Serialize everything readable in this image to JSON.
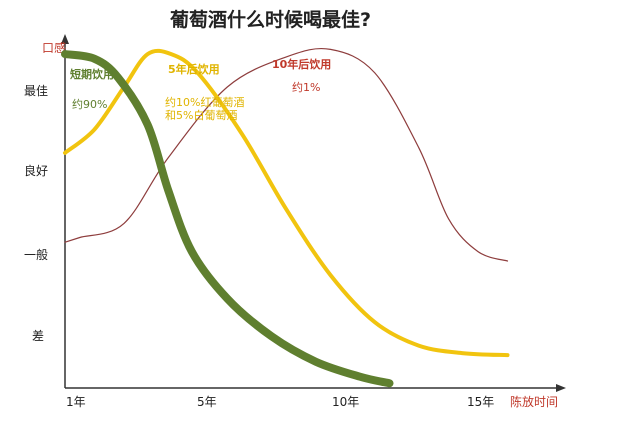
{
  "chart_data": {
    "type": "line",
    "title": "葡萄酒什么时候喝最佳?",
    "ylabel": "口感",
    "xlabel": "陈放时间",
    "y_ticks": [
      "最佳",
      "良好",
      "一般",
      "差"
    ],
    "y_tick_values": [
      4,
      3,
      2,
      1
    ],
    "x_ticks": [
      "1年",
      "5年",
      "10年",
      "15年"
    ],
    "x_tick_values": [
      1,
      5,
      10,
      15
    ],
    "xlim": [
      1,
      17
    ],
    "ylim": [
      0.5,
      4.2
    ],
    "grid": false,
    "legend": "none",
    "series": [
      {
        "name": "10年后饮用",
        "color": "#8e3d3d",
        "x": [
          1,
          1.5,
          3,
          4.5,
          6.5,
          8.5,
          10,
          11.5,
          13,
          14,
          15,
          16
        ],
        "y": [
          2.05,
          2.1,
          2.25,
          2.95,
          3.7,
          4.02,
          4.1,
          3.85,
          3.05,
          2.3,
          1.95,
          1.85
        ]
      },
      {
        "name": "5年后饮用",
        "color": "#f1c40f",
        "x": [
          1,
          2,
          3,
          3.8,
          4.6,
          5.5,
          7,
          8.5,
          10,
          11.5,
          13,
          14.5,
          16
        ],
        "y": [
          3.0,
          3.25,
          3.7,
          4.05,
          4.05,
          3.85,
          3.2,
          2.4,
          1.7,
          1.2,
          0.95,
          0.87,
          0.85
        ]
      },
      {
        "name": "短期饮用",
        "color": "#5f7f2f",
        "x": [
          1,
          2,
          2.8,
          3.8,
          4.5,
          5.3,
          6.5,
          8,
          9.5,
          11,
          12
        ],
        "y": [
          4.05,
          4.0,
          3.8,
          3.3,
          2.6,
          1.95,
          1.45,
          1.05,
          0.78,
          0.62,
          0.55
        ]
      }
    ],
    "annotations": [
      {
        "text": "短期饮用",
        "color": "#5f7f2f"
      },
      {
        "text": "约90%",
        "color": "#5f7f2f"
      },
      {
        "text": "5年后饮用",
        "color": "#e0b400"
      },
      {
        "text": "约10%红葡萄酒",
        "color": "#e0b400"
      },
      {
        "text": "和5%白葡萄酒",
        "color": "#e0b400"
      },
      {
        "text": "10年后饮用",
        "color": "#c0392b"
      },
      {
        "text": "约1%",
        "color": "#c0392b"
      }
    ]
  }
}
